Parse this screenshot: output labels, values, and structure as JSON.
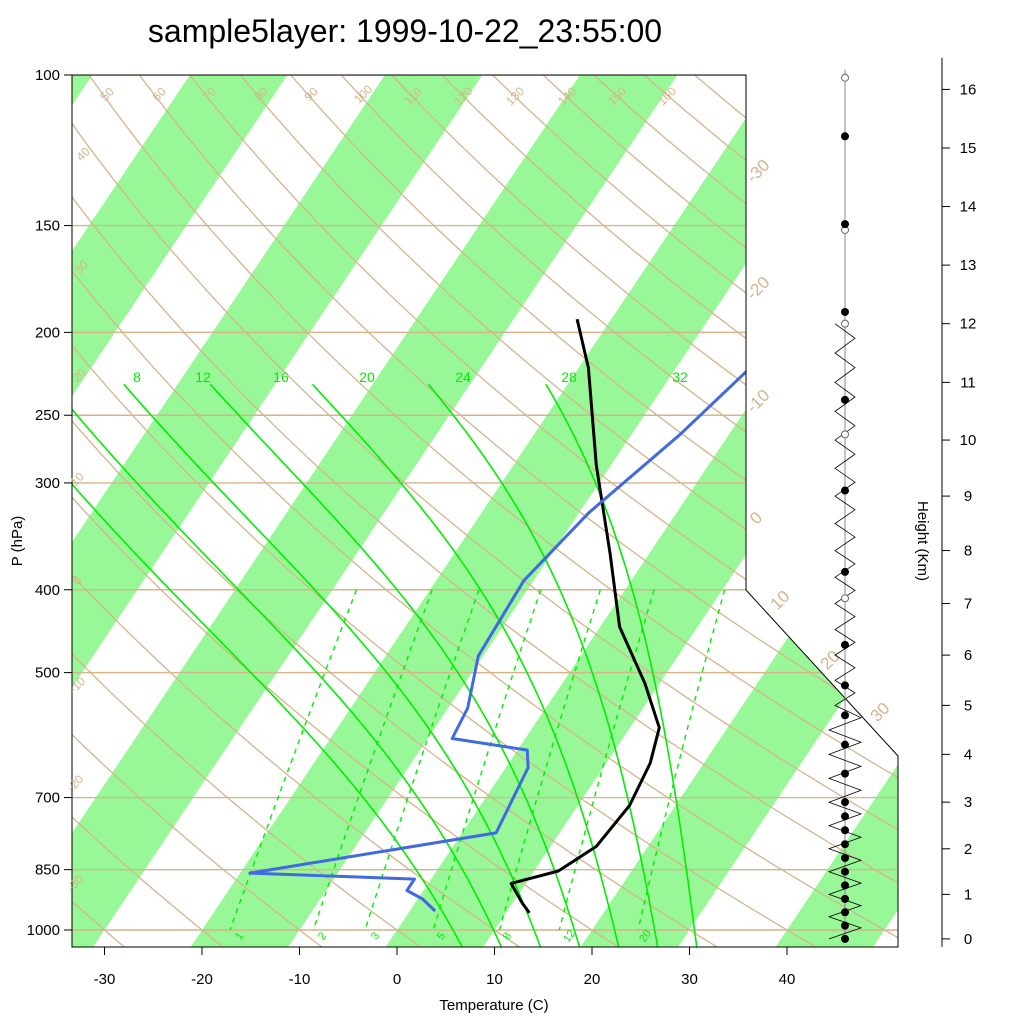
{
  "chart_data": {
    "type": "skew-t",
    "title": "sample5layer: 1999-10-22_23:55:00",
    "xlabel": "Temperature (C)",
    "ylabel": "P (hPa)",
    "y2label": "Height (Km)",
    "x_ticks": [
      -30,
      -20,
      -10,
      0,
      10,
      20,
      30,
      40
    ],
    "x_tick_labels": [
      "-30",
      "-20",
      "-10",
      "0",
      "10",
      "20",
      "30",
      "40"
    ],
    "xlim": [
      -33.5,
      52
    ],
    "p_ticks": [
      100,
      150,
      200,
      250,
      300,
      400,
      500,
      700,
      850,
      1000
    ],
    "p_tick_labels": [
      "100",
      "150",
      "200",
      "250",
      "300",
      "400",
      "500",
      "700",
      "850",
      "1000"
    ],
    "ylim_hPa": [
      100,
      1050
    ],
    "height_ticks_km": [
      0,
      1,
      2,
      3,
      4,
      5,
      6,
      7,
      8,
      9,
      10,
      11,
      12,
      13,
      14,
      15,
      16
    ],
    "height_tick_labels": [
      "0",
      "1",
      "2",
      "3",
      "4",
      "5",
      "6",
      "7",
      "8",
      "9",
      "10",
      "11",
      "12",
      "13",
      "14",
      "15",
      "16"
    ],
    "temperature_band_labels": [
      "-30",
      "-20",
      "-10",
      "0",
      "10",
      "20",
      "30"
    ],
    "dry_adiabat_labels": [
      "-30",
      "-20",
      "-10",
      "0",
      "10",
      "20",
      "30",
      "40",
      "50",
      "60",
      "70",
      "80",
      "90",
      "100",
      "110",
      "120",
      "130",
      "140",
      "150",
      "160"
    ],
    "moist_adiabat_labels": [
      "8",
      "12",
      "16",
      "20",
      "24",
      "28",
      "32"
    ],
    "mixing_ratio_labels": [
      "1",
      "2",
      "3",
      "5",
      "8",
      "12",
      "20"
    ],
    "series": [
      {
        "name": "",
        "kind": "temperature",
        "color": "#000000",
        "points": [
          [
            -23.5,
            193
          ],
          [
            -19,
            220
          ],
          [
            -11.5,
            286
          ],
          [
            -4,
            363
          ],
          [
            2,
            442
          ],
          [
            8.5,
            515
          ],
          [
            13,
            580
          ],
          [
            14.5,
            638
          ],
          [
            15.3,
            715
          ],
          [
            14.7,
            798
          ],
          [
            12.5,
            853
          ],
          [
            8.5,
            882
          ],
          [
            11,
            930
          ],
          [
            12.4,
            955
          ]
        ]
      },
      {
        "name": "",
        "kind": "dewpoint",
        "color": "#4169e1",
        "points": [
          [
            -0.5,
            193
          ],
          [
            -5,
            263
          ],
          [
            -9,
            325
          ],
          [
            -11,
            390
          ],
          [
            -10.5,
            478
          ],
          [
            -8,
            550
          ],
          [
            -7.5,
            597
          ],
          [
            1,
            616
          ],
          [
            2.3,
            646
          ],
          [
            3.5,
            770
          ],
          [
            -19,
            858
          ],
          [
            -1.7,
            872
          ],
          [
            -1.7,
            899
          ],
          [
            0.5,
            920
          ],
          [
            2.6,
            950
          ]
        ]
      }
    ],
    "wind_profile": {
      "note_marker_levels_km": [
        0,
        0.3,
        0.6,
        0.9,
        1.2,
        1.5,
        1.8,
        2.1,
        2.4,
        2.7,
        3,
        3.6,
        4.2,
        4.8,
        5.4,
        6.2,
        7.6,
        9.1,
        10.7,
        12.2,
        13.7,
        15.2
      ],
      "open_marker_levels_km": [
        7.1,
        10.1,
        12,
        13.6,
        16.2
      ]
    }
  }
}
